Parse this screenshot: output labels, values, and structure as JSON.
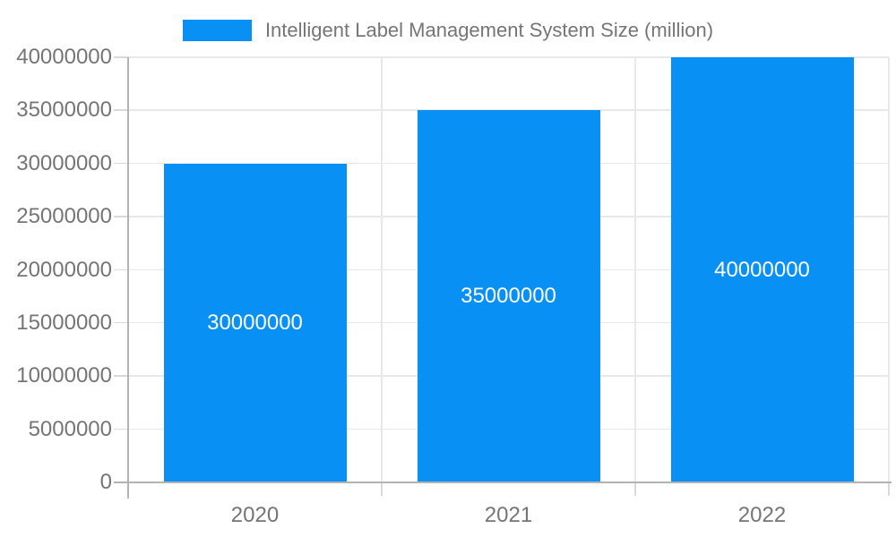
{
  "legend": {
    "label": "Intelligent Label Management System Size (million)"
  },
  "colors": {
    "bar": "#0990f5",
    "bar_label": "#ffffff",
    "text_muted": "#757575",
    "axis_line": "#b3b3b3",
    "gridline": "#e8e8e8",
    "tick": "#d9d9d9",
    "background": "#ffffff"
  },
  "chart_data": {
    "type": "bar",
    "categories": [
      "2020",
      "2021",
      "2022"
    ],
    "series": [
      {
        "name": "Intelligent Label Management System Size (million)",
        "values": [
          30000000,
          35000000,
          40000000
        ]
      }
    ],
    "bar_labels": [
      "30000000",
      "35000000",
      "40000000"
    ],
    "title": "",
    "xlabel": "",
    "ylabel": "",
    "ylim": [
      0,
      40000000
    ],
    "ytick_step": 5000000,
    "ytick_labels": [
      "0",
      "5000000",
      "10000000",
      "15000000",
      "20000000",
      "25000000",
      "30000000",
      "35000000",
      "40000000"
    ],
    "grid": true,
    "legend_position": "top",
    "bar_label_position": "inside-center"
  }
}
